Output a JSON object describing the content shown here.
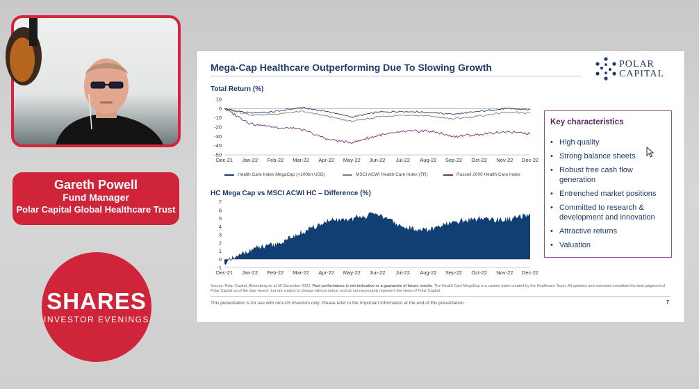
{
  "presenter": {
    "name": "Gareth Powell",
    "role": "Fund Manager",
    "organisation": "Polar Capital Global Healthcare Trust"
  },
  "event_logo": {
    "title": "SHARES",
    "subtitle": "INVESTOR EVENINGS"
  },
  "slide": {
    "title": "Mega-Cap Healthcare Outperforming Due To Slowing Growth",
    "logo_line1": "POLAR",
    "logo_line2": "CAPITAL",
    "key_characteristics": {
      "heading": "Key characteristics",
      "items": [
        "High quality",
        "Strong balance sheets",
        "Robust free cash flow generation",
        "Entrenched market positions",
        "Committed to research & development and innovation",
        "Attractive returns",
        "Valuation"
      ]
    },
    "source_note_plain1": "Source: Polar Capital, Bloomberg as at 30 December 2022. ",
    "source_note_bold": "Past performance is not indicative or a guarantee of future results",
    "source_note_plain2": ". The Health Care MegaCap is a custom index created by the Healthcare Team. All opinions and estimates constitute the best judgment of Polar Capital as of the date hereof, but are subject to change without notice, and do not necessarily represent the views of Polar Capital.",
    "footer": "This presentation is for use with non-US investors only. Please refer to the Important Information at the end of this presentation.",
    "page_number": "7"
  },
  "colors": {
    "brand_red": "#d0243b",
    "navy": "#1e3a6e",
    "series_megacap": "#1f3f73",
    "series_msci": "#8a7a6a",
    "series_russell": "#7b2d7e",
    "area_fill": "#123f73"
  },
  "chart_data": [
    {
      "type": "line",
      "title": "Total Return (%)",
      "categories": [
        "Dec-21",
        "Jan-22",
        "Feb-22",
        "Mar-22",
        "Apr-22",
        "May-22",
        "Jun-22",
        "Jul-22",
        "Aug-22",
        "Sep-22",
        "Oct-22",
        "Nov-22",
        "Dec-22"
      ],
      "ylim": [
        -50,
        10
      ],
      "yticks": [
        10,
        0,
        -10,
        -20,
        -30,
        -40,
        -50
      ],
      "series": [
        {
          "name": "Health Care Index MegaCap (>100bn USD)",
          "values": [
            0,
            -5,
            -3,
            1,
            -3,
            -9,
            -4,
            -3,
            -4,
            -6,
            -3,
            0,
            -1
          ]
        },
        {
          "name": "MSCI ACWI Health Care Index (TR)",
          "values": [
            0,
            -7,
            -6,
            -3,
            -8,
            -14,
            -9,
            -7,
            -8,
            -11,
            -8,
            -4,
            -5
          ]
        },
        {
          "name": "Russell 2000 Health Care Index",
          "values": [
            0,
            -16,
            -20,
            -22,
            -33,
            -37,
            -29,
            -25,
            -24,
            -30,
            -28,
            -25,
            -27
          ]
        }
      ]
    },
    {
      "type": "area",
      "title": "HC Mega Cap vs MSCI ACWI HC – Difference (%)",
      "categories": [
        "Dec-21",
        "Jan-22",
        "Feb-22",
        "Mar-22",
        "Apr-22",
        "May-22",
        "Jun-22",
        "Jul-22",
        "Aug-22",
        "Sep-22",
        "Oct-22",
        "Nov-22",
        "Dec-22"
      ],
      "ylim": [
        -1,
        7
      ],
      "yticks": [
        7,
        6,
        5,
        4,
        3,
        2,
        1,
        0,
        -1
      ],
      "values": [
        -0.5,
        1.2,
        1.8,
        3.2,
        4.6,
        5.0,
        5.6,
        3.9,
        3.6,
        4.5,
        5.0,
        4.8,
        5.4
      ]
    }
  ]
}
